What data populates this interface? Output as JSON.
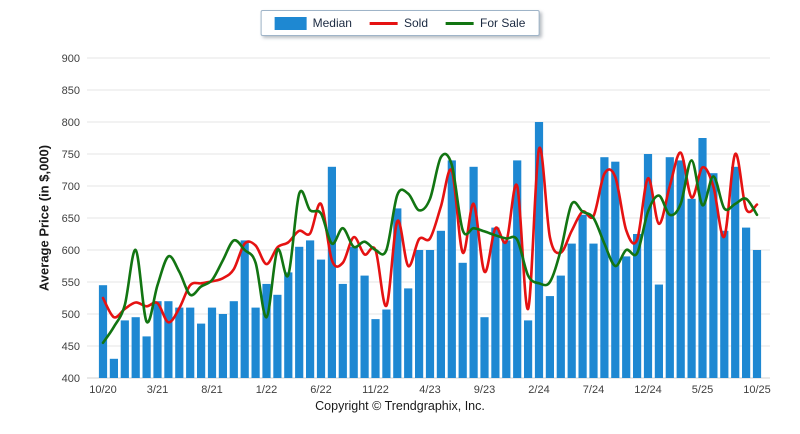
{
  "legend": {
    "items": [
      {
        "label": "Median",
        "type": "bar",
        "color": "#1E88D2"
      },
      {
        "label": "Sold",
        "type": "line",
        "color": "#E51212"
      },
      {
        "label": "For Sale",
        "type": "line",
        "color": "#127512"
      }
    ]
  },
  "axes": {
    "ylabel": "Average Price (in $,000)",
    "ylim": [
      400,
      900
    ],
    "ytick_step": 50,
    "xtick_labels": [
      "10/20",
      "3/21",
      "8/21",
      "1/22",
      "6/22",
      "11/22",
      "4/23",
      "9/23",
      "2/24",
      "7/24",
      "12/24",
      "5/25",
      "10/25"
    ]
  },
  "footer": {
    "copyright": "Copyright © Trendgraphix, Inc."
  },
  "chart_data": {
    "type": "bar",
    "title": "",
    "xlabel": "",
    "ylabel": "Average Price (in $,000)",
    "ylim": [
      400,
      900
    ],
    "grid": true,
    "legend_position": "top-center",
    "x_tick_every": 5,
    "categories": [
      "10/20",
      "11/20",
      "12/20",
      "1/21",
      "2/21",
      "3/21",
      "4/21",
      "5/21",
      "6/21",
      "7/21",
      "8/21",
      "9/21",
      "10/21",
      "11/21",
      "12/21",
      "1/22",
      "2/22",
      "3/22",
      "4/22",
      "5/22",
      "6/22",
      "7/22",
      "8/22",
      "9/22",
      "10/22",
      "11/22",
      "12/22",
      "1/23",
      "2/23",
      "3/23",
      "4/23",
      "5/23",
      "6/23",
      "7/23",
      "8/23",
      "9/23",
      "10/23",
      "11/23",
      "12/23",
      "1/24",
      "2/24",
      "3/24",
      "4/24",
      "5/24",
      "6/24",
      "7/24",
      "8/24",
      "9/24",
      "10/24",
      "11/24",
      "12/24",
      "1/25",
      "2/25",
      "3/25",
      "4/25",
      "5/25",
      "6/25",
      "7/25",
      "8/25",
      "9/25",
      "10/25"
    ],
    "series": [
      {
        "name": "Median",
        "type": "bar",
        "color": "#1E88D2",
        "values": [
          545,
          430,
          490,
          495,
          465,
          520,
          520,
          510,
          510,
          485,
          510,
          500,
          520,
          615,
          510,
          547,
          530,
          565,
          605,
          615,
          585,
          730,
          547,
          605,
          560,
          492,
          507,
          665,
          540,
          600,
          600,
          630,
          740,
          580,
          730,
          495,
          635,
          615,
          740,
          490,
          800,
          528,
          560,
          610,
          655,
          610,
          745,
          738,
          590,
          625,
          750,
          546,
          745,
          740,
          680,
          775,
          720,
          630,
          730,
          635,
          600
        ]
      },
      {
        "name": "Sold",
        "type": "line",
        "color": "#E51212",
        "values": [
          525,
          495,
          508,
          518,
          512,
          517,
          487,
          509,
          545,
          548,
          551,
          556,
          570,
          610,
          607,
          578,
          604,
          612,
          630,
          626,
          672,
          584,
          580,
          620,
          593,
          600,
          513,
          645,
          575,
          617,
          618,
          668,
          724,
          596,
          672,
          566,
          634,
          613,
          700,
          508,
          758,
          620,
          596,
          630,
          660,
          653,
          719,
          714,
          631,
          616,
          712,
          641,
          700,
          752,
          682,
          729,
          699,
          621,
          750,
          664,
          671
        ]
      },
      {
        "name": "For Sale",
        "type": "line",
        "color": "#127512",
        "values": [
          455,
          480,
          514,
          600,
          488,
          545,
          590,
          566,
          530,
          543,
          553,
          584,
          615,
          600,
          580,
          495,
          600,
          561,
          688,
          662,
          657,
          610,
          634,
          605,
          613,
          600,
          600,
          686,
          688,
          662,
          680,
          745,
          733,
          631,
          634,
          629,
          623,
          618,
          616,
          560,
          548,
          550,
          600,
          672,
          660,
          650,
          610,
          575,
          600,
          595,
          660,
          685,
          655,
          672,
          740,
          670,
          715,
          665,
          672,
          680,
          655
        ]
      }
    ]
  }
}
